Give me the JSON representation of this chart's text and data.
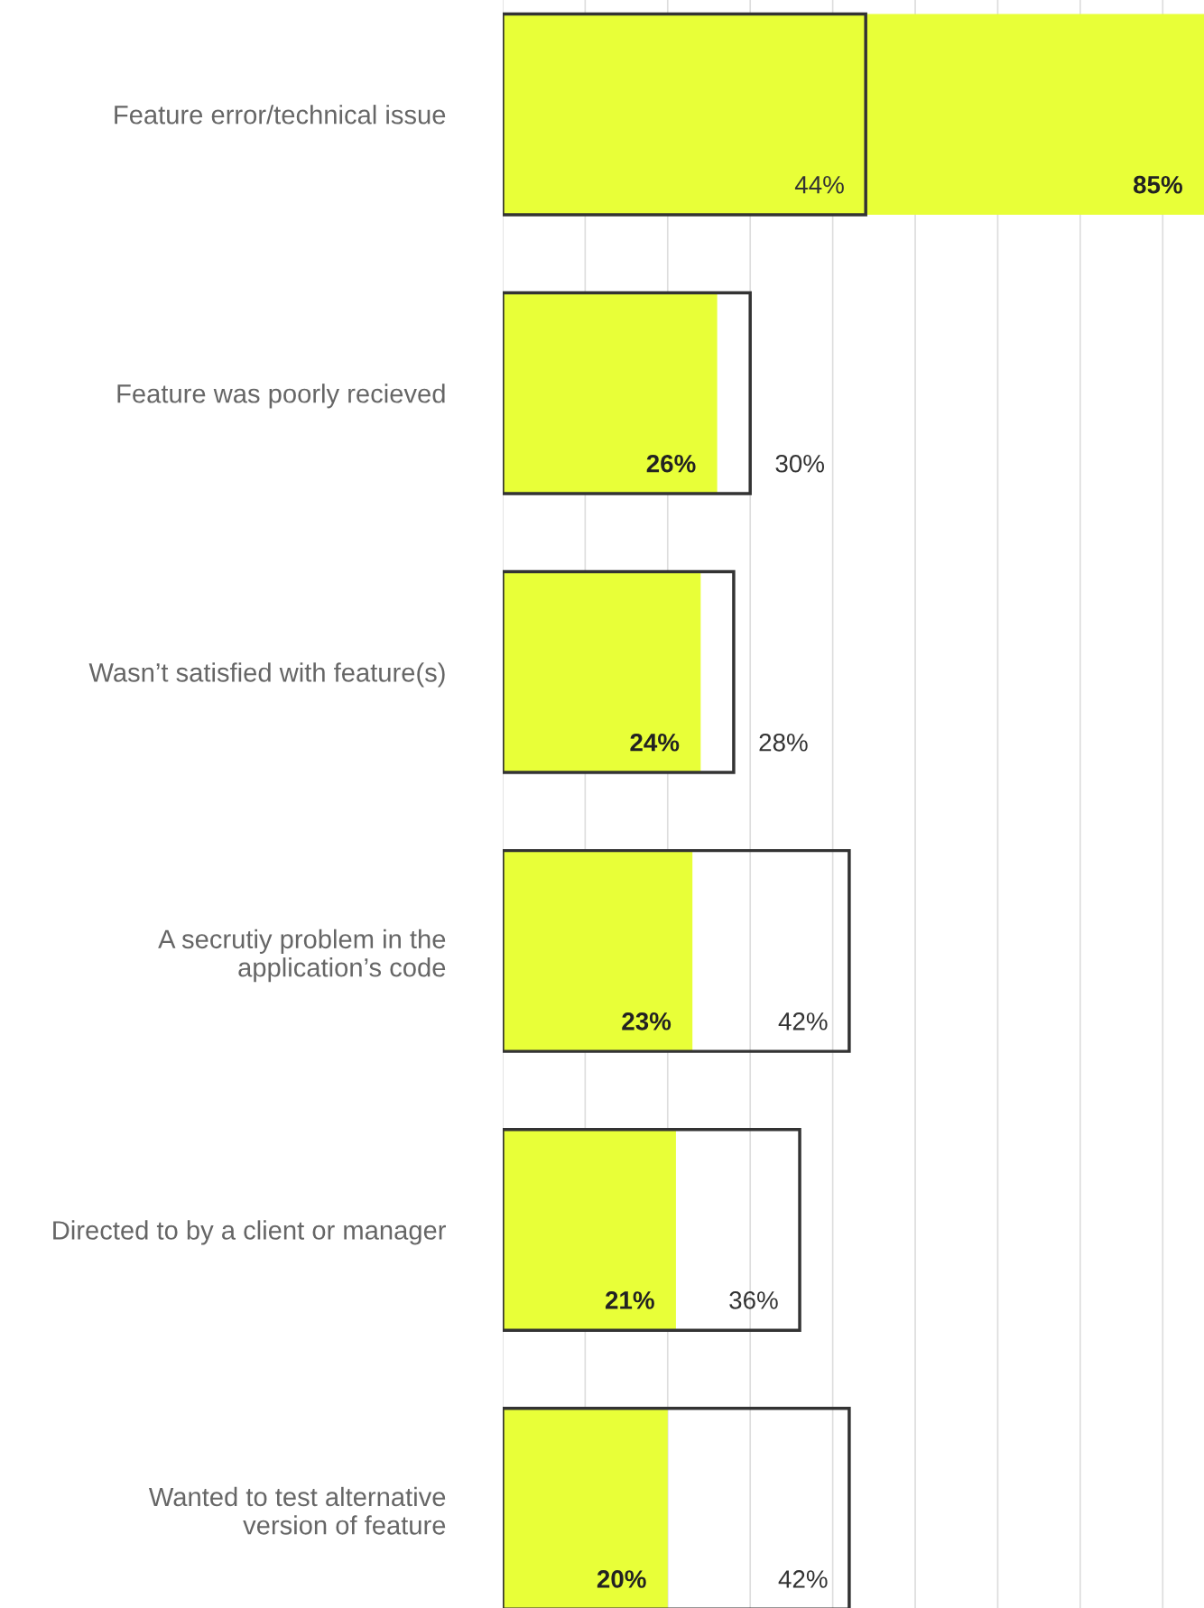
{
  "chart_data": {
    "type": "bar",
    "orientation": "horizontal",
    "categories": [
      "Feature error/technical issue",
      "Feature was poorly recieved",
      "Wasn’t satisfied with feature(s)",
      "A secrutiy problem in the\napplication’s code",
      "Directed to by a client or manager",
      "Wanted to test alternative\nversion of feature"
    ],
    "series": [
      {
        "color": "#e8ff38",
        "values": [
          85,
          26,
          24,
          23,
          21,
          20
        ],
        "value_labels": [
          "85%",
          "26%",
          "24%",
          "23%",
          "21%",
          "20%"
        ]
      },
      {
        "color": "#333333",
        "values": [
          44,
          30,
          28,
          42,
          36,
          42
        ],
        "value_labels": [
          "44%",
          "30%",
          "28%",
          "42%",
          "36%",
          "42%"
        ]
      }
    ],
    "grid": "x",
    "tick_labels": "y",
    "legend": false
  }
}
